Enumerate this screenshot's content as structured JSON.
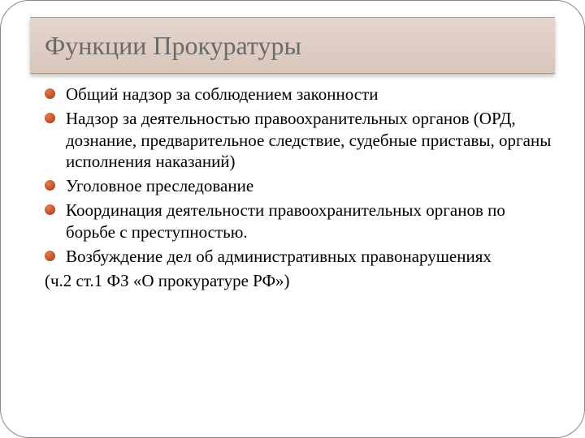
{
  "slide": {
    "title": "Функции Прокуратуры",
    "title_color": "#6a6a6a",
    "title_fontsize": 32,
    "title_bg_gradient_top": "#e4d5cd",
    "title_bg_gradient_bottom": "#d9c6bb",
    "bullet_color": "#c6562b",
    "body_fontsize": 21,
    "body_color": "#000000",
    "border_radius": 36,
    "items": [
      "Общий надзор за соблюдением законности",
      "Надзор за деятельностью правоохранительных органов (ОРД, дознание, предварительное следствие, судебные приставы, органы исполнения наказаний)",
      "Уголовное преследование",
      "Координация деятельности правоохранительных органов по борьбе с преступностью.",
      "Возбуждение дел об административных правонарушениях"
    ],
    "footnote": " (ч.2 ст.1 ФЗ «О прокуратуре РФ»)"
  }
}
